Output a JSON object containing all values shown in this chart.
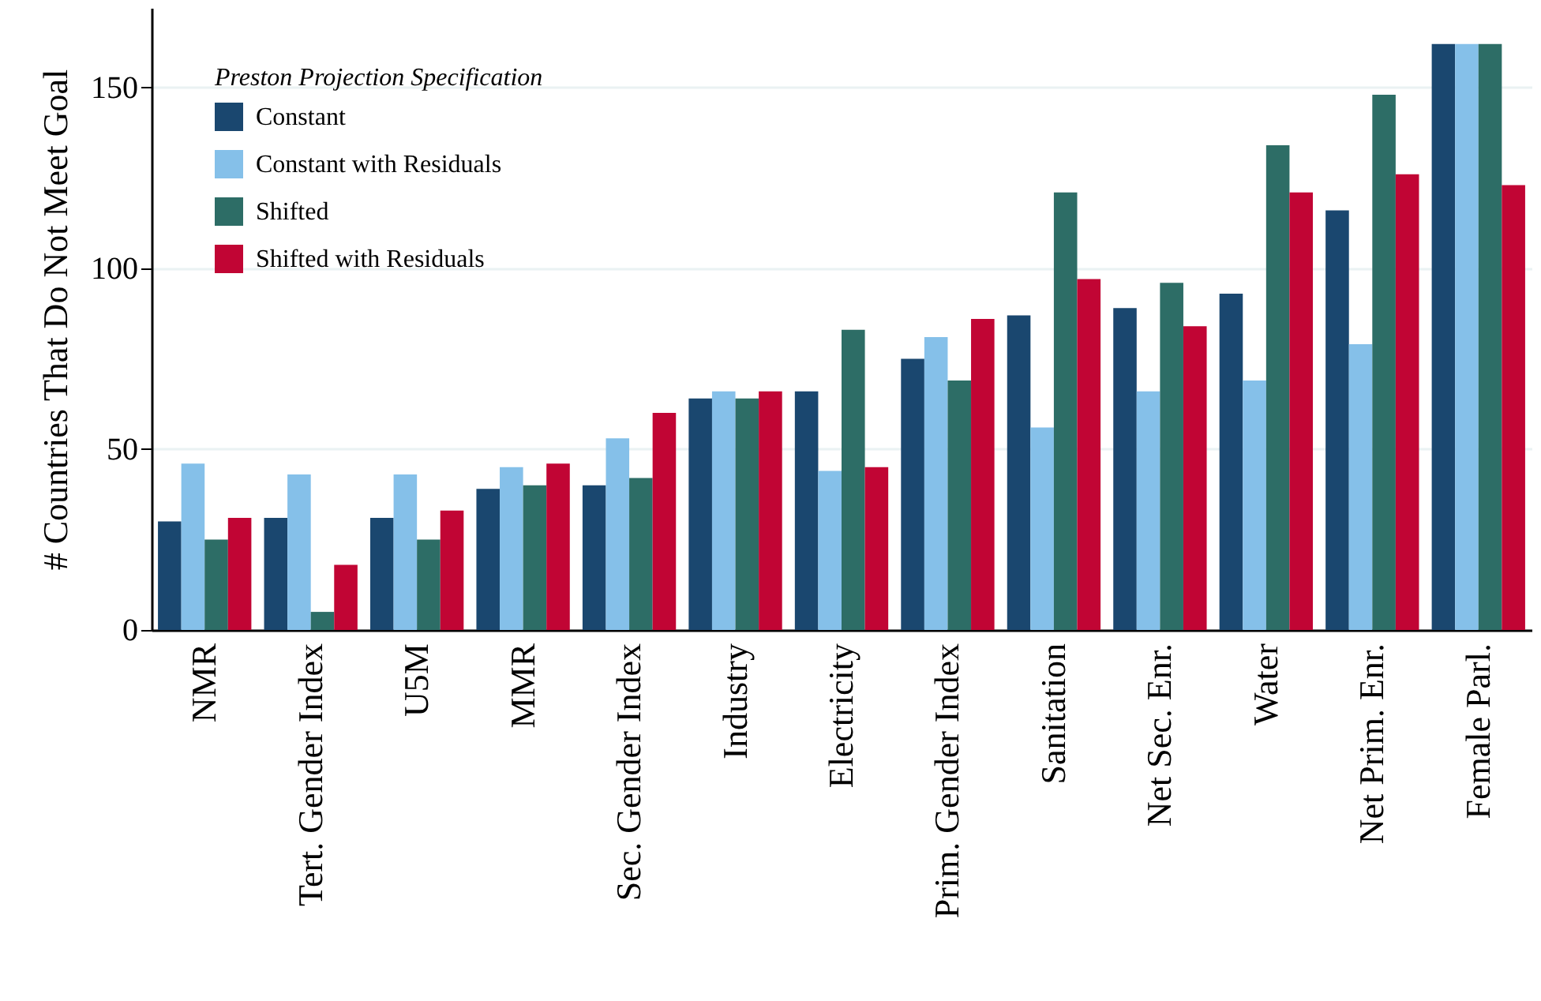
{
  "chart_data": {
    "type": "bar",
    "ylabel": "# Countries That Do Not Meet Goal",
    "legend_title": "Preston Projection Specification",
    "categories": [
      "NMR",
      "Tert. Gender Index",
      "U5M",
      "MMR",
      "Sec. Gender Index",
      "Industry",
      "Electricity",
      "Prim. Gender Index",
      "Sanitation",
      "Net Sec. Enr.",
      "Water",
      "Net Prim. Enr.",
      "Female Parl."
    ],
    "series": [
      {
        "name": "Constant",
        "color": "#1a476f",
        "values": [
          30,
          31,
          31,
          39,
          40,
          64,
          66,
          75,
          87,
          89,
          93,
          116,
          162
        ]
      },
      {
        "name": "Constant with Residuals",
        "color": "#85c0e9",
        "values": [
          46,
          43,
          43,
          45,
          53,
          66,
          44,
          81,
          56,
          66,
          69,
          79,
          162
        ]
      },
      {
        "name": "Shifted",
        "color": "#2d6d66",
        "values": [
          25,
          5,
          25,
          40,
          42,
          64,
          83,
          69,
          121,
          96,
          134,
          148,
          162
        ]
      },
      {
        "name": "Shifted with Residuals",
        "color": "#c10534",
        "values": [
          31,
          18,
          33,
          46,
          60,
          66,
          45,
          86,
          97,
          84,
          121,
          126,
          123
        ]
      }
    ],
    "ylim": [
      0,
      172
    ],
    "yticks": [
      0,
      50,
      100,
      150
    ],
    "grid": "y",
    "legend": "top left"
  }
}
